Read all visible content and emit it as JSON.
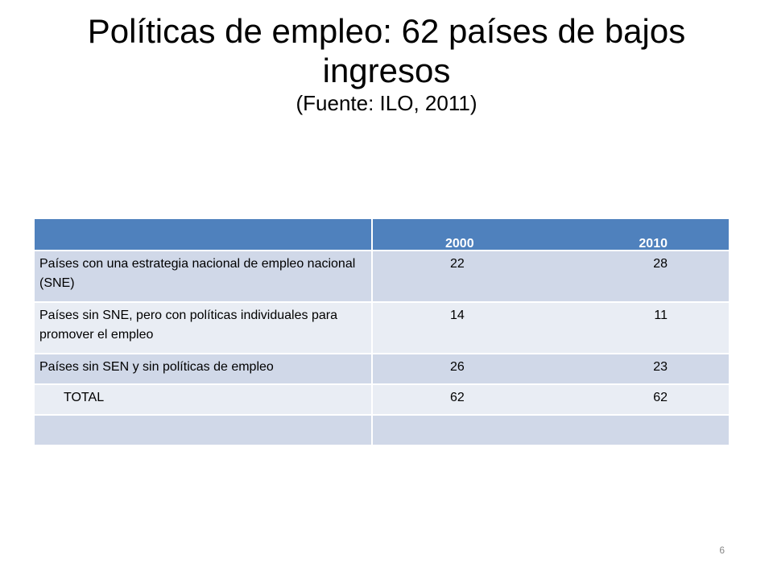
{
  "title": {
    "main": "Políticas de empleo: 62 países de bajos ingresos",
    "subtitle": "(Fuente: ILO, 2011)"
  },
  "table": {
    "header": {
      "label": "",
      "year_a": "2000",
      "year_b": "2010"
    },
    "rows": [
      {
        "label": "Países con una estrategia nacional de empleo nacional (SNE)",
        "v2000": "22",
        "v2010": "28"
      },
      {
        "label": "Países sin SNE, pero con políticas individuales para promover el empleo",
        "v2000": "14",
        "v2010": "11"
      },
      {
        "label": "Países sin SEN y sin políticas de empleo",
        "v2000": "26",
        "v2010": "23"
      },
      {
        "label": "TOTAL",
        "v2000": "62",
        "v2010": "62"
      }
    ]
  },
  "slide_number": "6"
}
